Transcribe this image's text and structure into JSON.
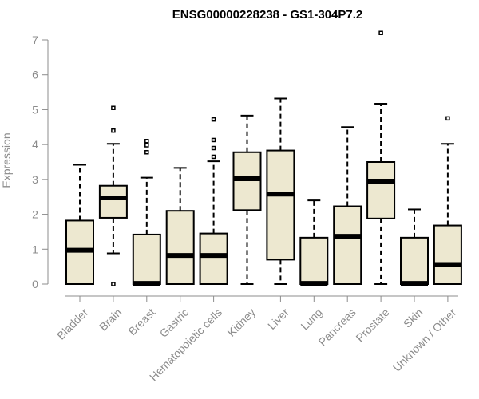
{
  "chart_data": {
    "type": "boxplot",
    "title": "ENSG00000228238 - GS1-304P7.2",
    "xlabel": "",
    "ylabel": "Expression",
    "ylim": [
      0,
      7
    ],
    "yticks": [
      0,
      1,
      2,
      3,
      4,
      5,
      6,
      7
    ],
    "box_fill": "#ede8d0",
    "series": [
      {
        "name": "Bladder",
        "min": 0,
        "q1": 0,
        "median": 0.97,
        "q3": 1.82,
        "max": 3.42,
        "outliers": []
      },
      {
        "name": "Brain",
        "min": 0.88,
        "q1": 1.9,
        "median": 2.47,
        "q3": 2.82,
        "max": 4.02,
        "outliers": [
          0,
          4.4,
          5.05
        ]
      },
      {
        "name": "Breast",
        "min": 0,
        "q1": 0,
        "median": 0.02,
        "q3": 1.42,
        "max": 3.05,
        "outliers": [
          3.78,
          3.98,
          4.1
        ]
      },
      {
        "name": "Gastric",
        "min": 0,
        "q1": 0,
        "median": 0.82,
        "q3": 2.1,
        "max": 3.33,
        "outliers": []
      },
      {
        "name": "Hematopoietic cells",
        "min": 0,
        "q1": 0,
        "median": 0.82,
        "q3": 1.45,
        "max": 3.52,
        "outliers": [
          3.65,
          3.9,
          4.13,
          4.72
        ]
      },
      {
        "name": "Kidney",
        "min": 0,
        "q1": 2.12,
        "median": 3.02,
        "q3": 3.78,
        "max": 4.83,
        "outliers": []
      },
      {
        "name": "Liver",
        "min": 0,
        "q1": 0.7,
        "median": 2.58,
        "q3": 3.83,
        "max": 5.32,
        "outliers": []
      },
      {
        "name": "Lung",
        "min": 0,
        "q1": 0,
        "median": 0.02,
        "q3": 1.33,
        "max": 2.4,
        "outliers": []
      },
      {
        "name": "Pancreas",
        "min": 0,
        "q1": 0,
        "median": 1.37,
        "q3": 2.23,
        "max": 4.5,
        "outliers": []
      },
      {
        "name": "Prostate",
        "min": 0,
        "q1": 1.88,
        "median": 2.95,
        "q3": 3.5,
        "max": 5.17,
        "outliers": [
          7.2
        ]
      },
      {
        "name": "Skin",
        "min": 0,
        "q1": 0,
        "median": 0.02,
        "q3": 1.33,
        "max": 2.14,
        "outliers": []
      },
      {
        "name": "Unknown / Other",
        "min": 0,
        "q1": 0,
        "median": 0.56,
        "q3": 1.68,
        "max": 4.02,
        "outliers": [
          4.75
        ]
      }
    ]
  }
}
